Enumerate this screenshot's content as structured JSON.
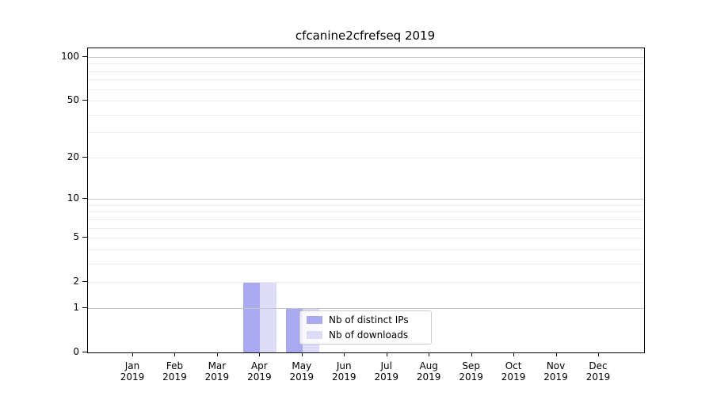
{
  "figure": {
    "background": "#ffffff"
  },
  "chart_data": {
    "type": "bar",
    "title": "cfcanine2cfrefseq 2019",
    "year": "2019",
    "categories": [
      "Jan",
      "Feb",
      "Mar",
      "Apr",
      "May",
      "Jun",
      "Jul",
      "Aug",
      "Sep",
      "Oct",
      "Nov",
      "Dec"
    ],
    "series": [
      {
        "name": "Nb of distinct IPs",
        "color": "#a9a9f0",
        "values": [
          0,
          0,
          0,
          2,
          1,
          0,
          0,
          0,
          0,
          0,
          0,
          0
        ]
      },
      {
        "name": "Nb of downloads",
        "color": "#dcdcf7",
        "values": [
          0,
          0,
          0,
          2,
          1,
          0,
          0,
          0,
          0,
          0,
          0,
          0
        ]
      }
    ],
    "xlabel": "",
    "ylabel": "",
    "y_axis": {
      "scale": "log1p",
      "tick_values": [
        0,
        1,
        2,
        5,
        10,
        20,
        50,
        100
      ],
      "tick_labels": [
        "0",
        "1",
        "2",
        "5",
        "10",
        "20",
        "50",
        "100"
      ],
      "major_grid_values": [
        1,
        10,
        100
      ],
      "minor_grid_values": [
        2,
        3,
        4,
        5,
        6,
        7,
        8,
        9,
        20,
        30,
        40,
        50,
        60,
        70,
        80,
        90
      ],
      "ylim": [
        0,
        114.7
      ],
      "grid": true
    },
    "legend": {
      "entries": [
        "Nb of distinct IPs",
        "Nb of downloads"
      ],
      "position": "lower center"
    },
    "colors": {
      "major_grid": "#c6c6c6",
      "minor_grid": "#ebebeb",
      "axis": "#000000",
      "text": "#000000",
      "legend_border": "#cccccc",
      "legend_bg": "rgba(255,255,255,0.8)"
    }
  }
}
